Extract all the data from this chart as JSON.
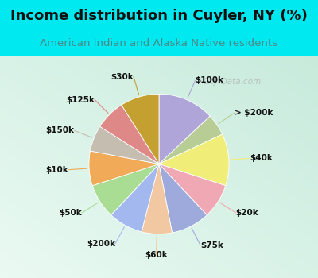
{
  "title": "Income distribution in Cuyler, NY (%)",
  "subtitle": "American Indian and Alaska Native residents",
  "cyan_bg": "#00e8f0",
  "chart_area_color_tl": [
    0.92,
    0.98,
    0.95
  ],
  "chart_area_color_br": [
    0.78,
    0.92,
    0.86
  ],
  "watermark": "City-Data.com",
  "labels": [
    "$100k",
    "> $200k",
    "$40k",
    "$20k",
    "$75k",
    "$60k",
    "$200k",
    "$50k",
    "$10k",
    "$150k",
    "$125k",
    "$30k"
  ],
  "values": [
    13,
    5,
    12,
    8,
    9,
    7,
    8,
    8,
    8,
    6,
    7,
    9
  ],
  "colors": [
    "#afa5d8",
    "#b8cc96",
    "#f0ee78",
    "#f0a8b4",
    "#9eaadc",
    "#f2c8a2",
    "#a4b8f0",
    "#aadd94",
    "#f0aa58",
    "#c4bdb0",
    "#df8888",
    "#c4a030"
  ],
  "label_fontsize": 7.5,
  "title_fontsize": 13,
  "subtitle_fontsize": 9.5,
  "startangle": 90
}
